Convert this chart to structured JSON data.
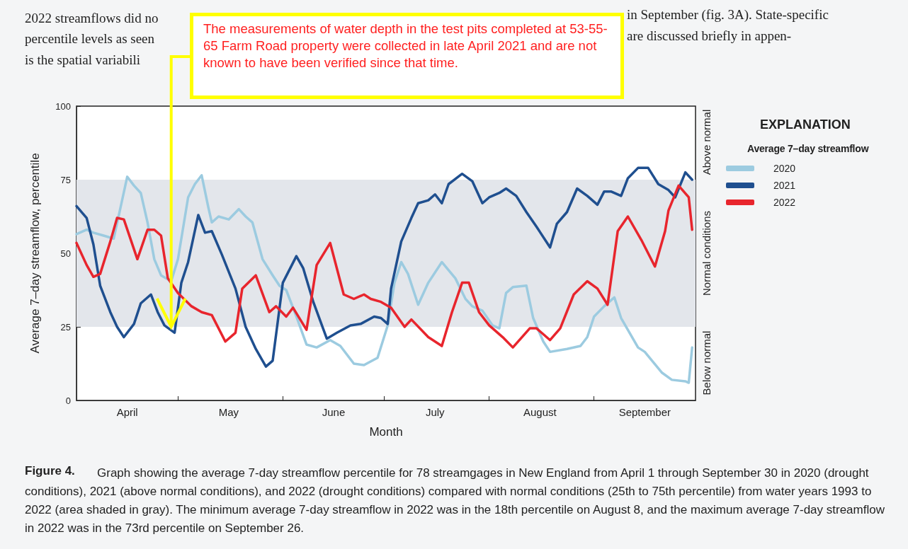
{
  "chart_data": {
    "type": "line",
    "xlabel": "Month",
    "ylabel": "Average 7–day streamflow, percentile",
    "legend_title": "Average 7–day streamflow",
    "xlim": [
      "--04-01",
      "--10-01"
    ],
    "xticks": [
      {
        "value": "--04-16",
        "label": "April"
      },
      {
        "value": "--05-01",
        "label": null
      },
      {
        "value": "--05-16",
        "label": "May"
      },
      {
        "value": "--06-01",
        "label": null
      },
      {
        "value": "--06-16",
        "label": "June"
      },
      {
        "value": "--07-01",
        "label": null
      },
      {
        "value": "--07-16",
        "label": "July"
      },
      {
        "value": "--08-01",
        "label": null
      },
      {
        "value": "--08-16",
        "label": "August"
      },
      {
        "value": "--09-01",
        "label": null
      },
      {
        "value": "--09-16",
        "label": "September"
      }
    ],
    "ylim": [
      0,
      100
    ],
    "yticks": [
      0,
      25,
      50,
      75,
      100
    ],
    "grid": false,
    "legend": "right",
    "marker": "none",
    "line_style": "solid",
    "bands": [
      {
        "axis": "y",
        "from": 25,
        "to": 75,
        "label": "Normal conditions",
        "color": "#e3e6eb"
      }
    ],
    "series": [
      {
        "name": "2020",
        "color": "#9ccbe0",
        "x": [
          "--04-01",
          "--04-04",
          "--04-06",
          "--04-09",
          "--04-12",
          "--04-14",
          "--04-16",
          "--04-18",
          "--04-20",
          "--04-22",
          "--04-24",
          "--04-26",
          "--04-29",
          "--05-01",
          "--05-04",
          "--05-06",
          "--05-08",
          "--05-10",
          "--05-11",
          "--05-13",
          "--05-16",
          "--05-19",
          "--05-21",
          "--05-23",
          "--05-26",
          "--05-29",
          "--05-31",
          "--06-02",
          "--06-05",
          "--06-08",
          "--06-11",
          "--06-15",
          "--06-18",
          "--06-22",
          "--06-25",
          "--06-29",
          "--07-02",
          "--07-04",
          "--07-06",
          "--07-08",
          "--07-11",
          "--07-14",
          "--07-18",
          "--07-22",
          "--07-25",
          "--07-27",
          "--07-30",
          "--08-02",
          "--08-04",
          "--08-06",
          "--08-08",
          "--08-12",
          "--08-14",
          "--08-17",
          "--08-19",
          "--08-24",
          "--08-28",
          "--08-30",
          "--09-01",
          "--09-04",
          "--09-07",
          "--09-09",
          "--09-14",
          "--09-16",
          "--09-21",
          "--09-24",
          "--09-28",
          "--09-29",
          "--09-30"
        ],
        "values": [
          56.5,
          58,
          57,
          56,
          55,
          65.5,
          76,
          73,
          70.5,
          60.5,
          48,
          42.5,
          40.5,
          48,
          69,
          73.5,
          76.5,
          65.5,
          60.5,
          62.5,
          61.5,
          65,
          62.5,
          60.5,
          48,
          42.5,
          39,
          37.5,
          28.5,
          19,
          18,
          20.5,
          18.5,
          12.5,
          12,
          14.5,
          25.5,
          40,
          47,
          43,
          32.5,
          40,
          47,
          41.5,
          34.5,
          32,
          30.5,
          25.5,
          24.5,
          36.5,
          38.5,
          39,
          28,
          20,
          16.5,
          17.5,
          18.5,
          21.5,
          28.5,
          32,
          35,
          28,
          18,
          16.5,
          9.5,
          7,
          6.5,
          6,
          18
        ]
      },
      {
        "name": "2021",
        "color": "#1f4f8f",
        "x": [
          "--04-01",
          "--04-04",
          "--04-06",
          "--04-08",
          "--04-11",
          "--04-13",
          "--04-15",
          "--04-18",
          "--04-20",
          "--04-23",
          "--04-25",
          "--04-27",
          "--04-30",
          "--05-02",
          "--05-04",
          "--05-07",
          "--05-09",
          "--05-11",
          "--05-14",
          "--05-18",
          "--05-21",
          "--05-24",
          "--05-27",
          "--05-29",
          "--06-01",
          "--06-05",
          "--06-07",
          "--06-10",
          "--06-14",
          "--06-17",
          "--06-21",
          "--06-24",
          "--06-28",
          "--06-30",
          "--07-02",
          "--07-03",
          "--07-06",
          "--07-09",
          "--07-11",
          "--07-14",
          "--07-16",
          "--07-18",
          "--07-20",
          "--07-24",
          "--07-27",
          "--07-30",
          "--08-01",
          "--08-04",
          "--08-06",
          "--08-09",
          "--08-12",
          "--08-15",
          "--08-19",
          "--08-21",
          "--08-24",
          "--08-27",
          "--08-30",
          "--09-02",
          "--09-04",
          "--09-06",
          "--09-09",
          "--09-11",
          "--09-14",
          "--09-17",
          "--09-20",
          "--09-23",
          "--09-25",
          "--09-28",
          "--09-30"
        ],
        "values": [
          66,
          62,
          53,
          39,
          30,
          25,
          21.5,
          26,
          33,
          36,
          30,
          25.5,
          23,
          40,
          47,
          63,
          57,
          57.5,
          49.5,
          38,
          25,
          17.5,
          11.5,
          13.5,
          40,
          49,
          45,
          33.5,
          21,
          23,
          25.5,
          26,
          28.5,
          28,
          26,
          38,
          54,
          62,
          67,
          68,
          70,
          67,
          73.5,
          77,
          74.5,
          67,
          69,
          70.5,
          72,
          69.5,
          64,
          59,
          52,
          60,
          64,
          72,
          69.5,
          66.5,
          71,
          71,
          69.5,
          75.5,
          79,
          79,
          73.5,
          71.5,
          69,
          77.5,
          75
        ]
      },
      {
        "name": "2022",
        "color": "#e8252d",
        "x": [
          "--04-01",
          "--04-04",
          "--04-06",
          "--04-08",
          "--04-11",
          "--04-13",
          "--04-15",
          "--04-19",
          "--04-22",
          "--04-24",
          "--04-26",
          "--04-28",
          "--05-01",
          "--05-05",
          "--05-08",
          "--05-11",
          "--05-15",
          "--05-18",
          "--05-20",
          "--05-24",
          "--05-28",
          "--05-30",
          "--06-02",
          "--06-04",
          "--06-08",
          "--06-11",
          "--06-15",
          "--06-19",
          "--06-22",
          "--06-25",
          "--06-27",
          "--06-30",
          "--07-03",
          "--07-07",
          "--07-09",
          "--07-14",
          "--07-18",
          "--07-21",
          "--07-24",
          "--07-26",
          "--07-29",
          "--08-01",
          "--08-05",
          "--08-08",
          "--08-13",
          "--08-15",
          "--08-19",
          "--08-22",
          "--08-26",
          "--08-30",
          "--09-02",
          "--09-05",
          "--09-08",
          "--09-11",
          "--09-15",
          "--09-19",
          "--09-22",
          "--09-23",
          "--09-26",
          "--09-29",
          "--09-30"
        ],
        "values": [
          53.5,
          46,
          42,
          43,
          54,
          62,
          61.5,
          48,
          58,
          58,
          56,
          41.5,
          36.5,
          32,
          30,
          29,
          20,
          23,
          38,
          42.5,
          30,
          32,
          28.5,
          31.5,
          24,
          46,
          53.5,
          36,
          34.5,
          36,
          34.5,
          33.5,
          31.5,
          25,
          27.5,
          21.5,
          18.5,
          30,
          40,
          40,
          30,
          25.5,
          21.5,
          18,
          24.5,
          24.5,
          20.5,
          24.5,
          36,
          40.5,
          38,
          32.5,
          57.5,
          62.5,
          54.5,
          45.5,
          57.5,
          64.5,
          73,
          69,
          58
        ]
      }
    ],
    "annotations": [
      "2022 streamflows did no",
      "percentile levels as seen",
      "is the spatial variabili",
      "in September (fig. 3A). State-specific",
      "are discussed briefly in appen-",
      "EXPLANATION",
      "Figure 4.",
      "Graph showing the average 7-day streamflow percentile for 78 streamgages in New England from April 1 through September 30 in 2020 (drought conditions), 2021 (above normal conditions), and 2022 (drought conditions) compared with normal conditions (25th to 75th percentile) from water years 1993 to 2022 (area shaded in gray). The minimum average 7-day streamflow in 2022 was in the 18th percentile on August 8, and the maximum average 7-day streamflow in 2022 was in the 73rd percentile on September 26.",
      {
        "text": "The measurements of water depth in the test pits completed at 53-55-65 Farm Road property were collected in late April 2021 and are not known to have been verified since that time.",
        "x": "--04-29",
        "y": 25
      },
      "Above normal",
      "Below normal"
    ]
  }
}
